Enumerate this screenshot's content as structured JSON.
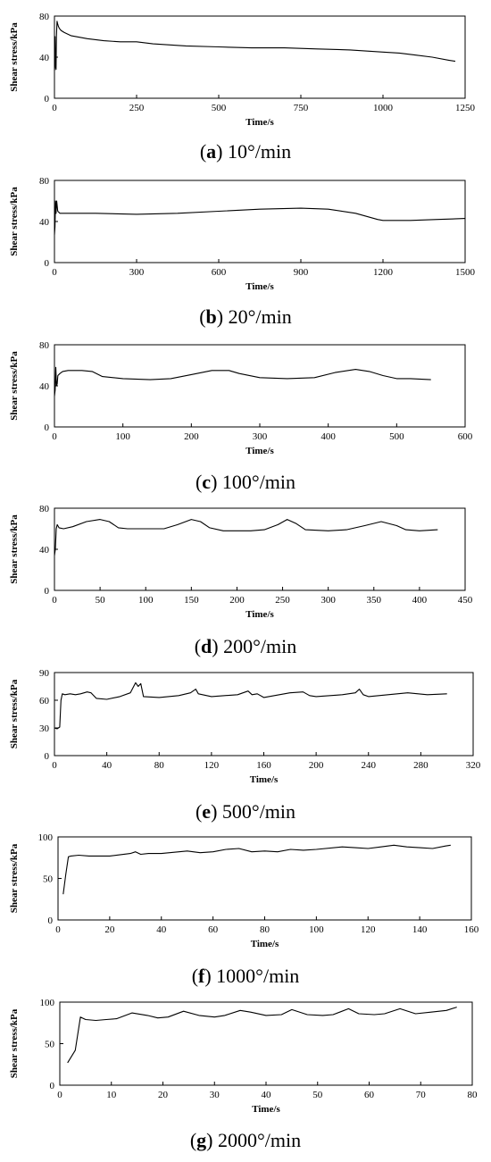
{
  "chart_data": [
    {
      "type": "line",
      "caption_letter": "a",
      "caption_rest": " 10°/min",
      "xlabel": "Time/s",
      "ylabel": "Shear stress/kPa",
      "xlim": [
        0,
        1250
      ],
      "ylim": [
        0,
        80
      ],
      "xticks": [
        "0",
        "250",
        "500",
        "750",
        "1000",
        "1250"
      ],
      "yticks": [
        "0",
        "40",
        "80"
      ],
      "grid": false,
      "x": [
        0,
        1,
        2,
        3,
        5,
        6,
        8,
        10,
        12,
        15,
        20,
        30,
        50,
        100,
        150,
        200,
        250,
        300,
        400,
        500,
        600,
        700,
        800,
        900,
        1000,
        1050,
        1100,
        1150,
        1200,
        1220
      ],
      "y": [
        27,
        30,
        60,
        35,
        28,
        60,
        75,
        72,
        70,
        68,
        66,
        64,
        61,
        58,
        56,
        55,
        55,
        53,
        51,
        50,
        49,
        49,
        48,
        47,
        45,
        44,
        42,
        40,
        37,
        36
      ]
    },
    {
      "type": "line",
      "caption_letter": "b",
      "caption_rest": " 20°/min",
      "xlabel": "Time/s",
      "ylabel": "Shear stress/kPa",
      "xlim": [
        0,
        1500
      ],
      "ylim": [
        0,
        80
      ],
      "xticks": [
        "0",
        "300",
        "600",
        "900",
        "1200",
        "1500"
      ],
      "yticks": [
        "0",
        "40",
        "80"
      ],
      "grid": false,
      "x": [
        0,
        2,
        4,
        6,
        8,
        12,
        20,
        50,
        150,
        300,
        450,
        600,
        750,
        900,
        1000,
        1100,
        1180,
        1200,
        1300,
        1400,
        1500
      ],
      "y": [
        27,
        35,
        60,
        48,
        60,
        50,
        48,
        48,
        48,
        47,
        48,
        50,
        52,
        53,
        52,
        48,
        42,
        41,
        41,
        42,
        43
      ]
    },
    {
      "type": "line",
      "caption_letter": "c",
      "caption_rest": " 100°/min",
      "xlabel": "Time/s",
      "ylabel": "Shear stress/kPa",
      "xlim": [
        0,
        600
      ],
      "ylim": [
        0,
        80
      ],
      "xticks": [
        "0",
        "100",
        "200",
        "300",
        "400",
        "500",
        "600"
      ],
      "yticks": [
        "0",
        "40",
        "80"
      ],
      "grid": false,
      "x": [
        0,
        1,
        2,
        3,
        4,
        5,
        8,
        12,
        20,
        40,
        55,
        70,
        100,
        140,
        170,
        200,
        230,
        255,
        270,
        300,
        340,
        380,
        410,
        440,
        460,
        480,
        500,
        520,
        550
      ],
      "y": [
        30,
        36,
        58,
        40,
        42,
        50,
        52,
        54,
        55,
        55,
        54,
        49,
        47,
        46,
        47,
        51,
        55,
        55,
        52,
        48,
        47,
        48,
        53,
        56,
        54,
        50,
        47,
        47,
        46
      ]
    },
    {
      "type": "line",
      "caption_letter": "d",
      "caption_rest": " 200°/min",
      "xlabel": "Time/s",
      "ylabel": "Shear stress/kPa",
      "xlim": [
        0,
        450
      ],
      "ylim": [
        0,
        80
      ],
      "xticks": [
        "0",
        "50",
        "100",
        "150",
        "200",
        "250",
        "300",
        "350",
        "400",
        "450"
      ],
      "yticks": [
        "0",
        "40",
        "80"
      ],
      "grid": false,
      "x": [
        0,
        1,
        2,
        3,
        5,
        10,
        20,
        35,
        50,
        60,
        70,
        80,
        100,
        120,
        135,
        150,
        160,
        170,
        185,
        200,
        215,
        230,
        245,
        255,
        265,
        275,
        300,
        320,
        340,
        358,
        375,
        385,
        400,
        420
      ],
      "y": [
        34,
        40,
        60,
        64,
        61,
        60,
        62,
        67,
        69,
        67,
        61,
        60,
        60,
        60,
        64,
        69,
        67,
        61,
        58,
        58,
        58,
        59,
        64,
        69,
        65,
        59,
        58,
        59,
        63,
        67,
        63,
        59,
        58,
        59
      ]
    },
    {
      "type": "line",
      "caption_letter": "e",
      "caption_rest": " 500°/min",
      "xlabel": "Time/s",
      "ylabel": "Shear stress/kPa",
      "xlim": [
        0,
        320
      ],
      "ylim": [
        0,
        90
      ],
      "xticks": [
        "0",
        "40",
        "80",
        "120",
        "160",
        "200",
        "240",
        "280",
        "320"
      ],
      "yticks": [
        "0",
        "30",
        "60",
        "90"
      ],
      "grid": false,
      "x": [
        0,
        2,
        4,
        5,
        6,
        8,
        12,
        16,
        20,
        25,
        28,
        32,
        40,
        50,
        58,
        62,
        64,
        66,
        68,
        80,
        95,
        104,
        108,
        110,
        120,
        140,
        148,
        151,
        155,
        160,
        180,
        190,
        195,
        200,
        220,
        230,
        233,
        236,
        240,
        255,
        270,
        285,
        300
      ],
      "y": [
        30,
        29,
        31,
        60,
        67,
        66,
        67,
        66,
        67,
        69,
        68,
        62,
        61,
        64,
        68,
        79,
        75,
        78,
        64,
        63,
        65,
        68,
        72,
        67,
        64,
        66,
        70,
        66,
        67,
        63,
        68,
        69,
        65,
        64,
        66,
        68,
        72,
        66,
        64,
        66,
        68,
        66,
        67
      ]
    },
    {
      "type": "line",
      "caption_letter": "f",
      "caption_rest": " 1000°/min",
      "xlabel": "Time/s",
      "ylabel": "Shear stress/kPa",
      "xlim": [
        0,
        160
      ],
      "ylim": [
        0,
        100
      ],
      "xticks": [
        "0",
        "20",
        "40",
        "60",
        "80",
        "100",
        "120",
        "140",
        "160"
      ],
      "yticks": [
        "0",
        "50",
        "100"
      ],
      "grid": false,
      "x": [
        2,
        3,
        4,
        5,
        8,
        12,
        20,
        28,
        30,
        32,
        35,
        40,
        50,
        55,
        60,
        65,
        70,
        75,
        80,
        85,
        90,
        95,
        100,
        110,
        115,
        120,
        125,
        130,
        135,
        140,
        145,
        150,
        152
      ],
      "y": [
        31,
        55,
        76,
        77,
        78,
        77,
        77,
        80,
        82,
        79,
        80,
        80,
        83,
        81,
        82,
        85,
        86,
        82,
        83,
        82,
        85,
        84,
        85,
        88,
        87,
        86,
        88,
        90,
        88,
        87,
        86,
        89,
        90
      ]
    },
    {
      "type": "line",
      "caption_letter": "g",
      "caption_rest": " 2000°/min",
      "xlabel": "Time/s",
      "ylabel": "Shear stress/kPa",
      "xlim": [
        0,
        80
      ],
      "ylim": [
        0,
        100
      ],
      "xticks": [
        "0",
        "10",
        "20",
        "30",
        "40",
        "50",
        "60",
        "70",
        "80"
      ],
      "yticks": [
        "0",
        "50",
        "100"
      ],
      "grid": false,
      "x": [
        1.5,
        3,
        4,
        5,
        7,
        9,
        11,
        14,
        17,
        19,
        21,
        24,
        27,
        30,
        32,
        35,
        37,
        40,
        43,
        45,
        48,
        51,
        53,
        56,
        58,
        61,
        63,
        66,
        69,
        72,
        75,
        77
      ],
      "y": [
        27,
        42,
        82,
        79,
        78,
        79,
        80,
        87,
        84,
        81,
        82,
        89,
        84,
        82,
        84,
        90,
        88,
        84,
        85,
        91,
        85,
        84,
        85,
        92,
        86,
        85,
        86,
        92,
        86,
        88,
        90,
        94
      ]
    }
  ]
}
